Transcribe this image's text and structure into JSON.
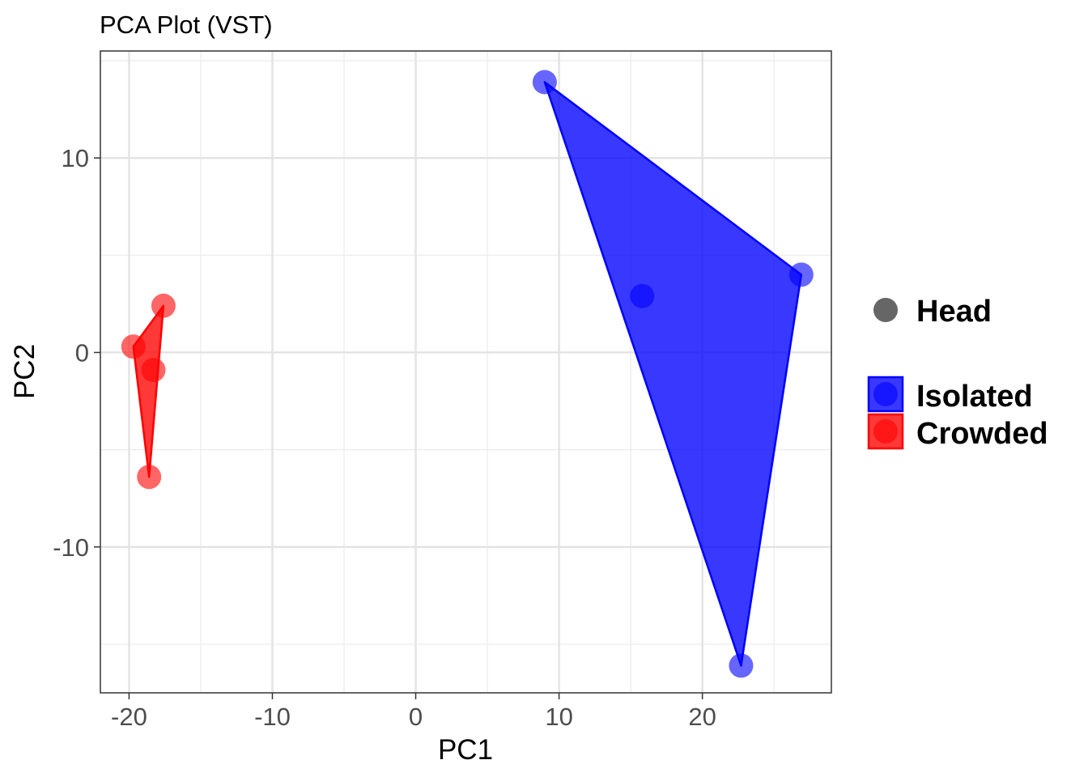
{
  "chart_data": {
    "type": "scatter",
    "title": "PCA Plot (VST)",
    "xlabel": "PC1",
    "ylabel": "PC2",
    "xlim": [
      -22,
      29
    ],
    "ylim": [
      -17.5,
      15.5
    ],
    "x_ticks": [
      -20,
      -10,
      0,
      10,
      20
    ],
    "y_ticks": [
      -10,
      0,
      10
    ],
    "x_tick_labels": [
      "-20",
      "-10",
      "0",
      "10",
      "20"
    ],
    "y_tick_labels": [
      "-10",
      "0",
      "10"
    ],
    "grid": true,
    "hulls": true,
    "legend_position": "right",
    "shape_legend": {
      "label": "Head",
      "color": "#666666"
    },
    "series": [
      {
        "name": "Isolated",
        "color": "#0000ff",
        "points": [
          {
            "x": 9.0,
            "y": 13.9
          },
          {
            "x": 15.8,
            "y": 2.9
          },
          {
            "x": 26.9,
            "y": 4.0
          },
          {
            "x": 22.7,
            "y": -16.1
          }
        ],
        "hull": [
          0,
          2,
          3
        ]
      },
      {
        "name": "Crowded",
        "color": "#ff0000",
        "points": [
          {
            "x": -17.6,
            "y": 2.4
          },
          {
            "x": -19.7,
            "y": 0.3
          },
          {
            "x": -18.3,
            "y": -0.9
          },
          {
            "x": -18.6,
            "y": -6.4
          }
        ],
        "hull": [
          0,
          1,
          3
        ]
      }
    ]
  }
}
